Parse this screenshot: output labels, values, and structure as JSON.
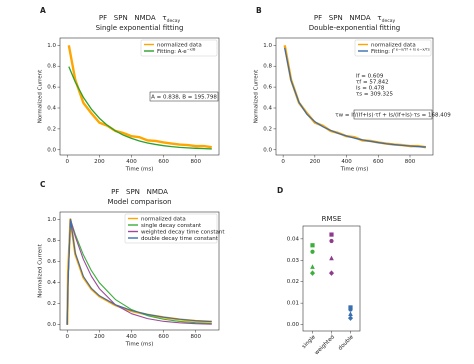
{
  "chart_data": [
    {
      "type": "line",
      "label": "A",
      "title": "PF   SPN   NMDA   τ",
      "title_sub": "decay",
      "subtitle": "Single exponential fitting",
      "xlabel": "Time (ms)",
      "ylabel": "Normalized Current",
      "xlim": [
        -45,
        945
      ],
      "ylim": [
        -0.05,
        1.07
      ],
      "xticks": [
        0,
        200,
        400,
        600,
        800
      ],
      "yticks": [
        {
          "value": 0,
          "label": "0.0"
        },
        0.2,
        0.4,
        0.6,
        0.8,
        {
          "value": 1,
          "label": "1.0"
        }
      ],
      "legend": "upper right",
      "x": [
        10,
        50,
        100,
        150,
        200,
        250,
        300,
        350,
        400,
        450,
        500,
        550,
        600,
        650,
        700,
        750,
        800,
        850,
        900
      ],
      "series": [
        {
          "name": "normalized data",
          "color": "#ffa500",
          "width": 2.4,
          "values": [
            1.0,
            0.67,
            0.45,
            0.35,
            0.26,
            0.23,
            0.18,
            0.16,
            0.13,
            0.12,
            0.09,
            0.085,
            0.07,
            0.06,
            0.05,
            0.045,
            0.035,
            0.035,
            0.025
          ]
        },
        {
          "name": "Fitting: A·e",
          "name_sup": "−x/B",
          "color": "#2ca02c",
          "width": 1.3,
          "values": [
            0.796,
            0.649,
            0.503,
            0.39,
            0.302,
            0.234,
            0.181,
            0.14,
            0.109,
            0.084,
            0.065,
            0.051,
            0.039,
            0.03,
            0.023,
            0.018,
            0.014,
            0.011,
            0.008
          ]
        }
      ],
      "annotation_box": "A = 0.838, B = 195.798"
    },
    {
      "type": "line",
      "label": "B",
      "title": "PF   SPN   NMDA   τ",
      "title_sub": "decay",
      "subtitle": "Double-exponential fitting",
      "xlabel": "Time (ms)",
      "ylabel": "Normalized Current",
      "xlim": [
        -45,
        945
      ],
      "ylim": [
        -0.05,
        1.07
      ],
      "xticks": [
        0,
        200,
        400,
        600,
        800
      ],
      "yticks": [
        {
          "value": 0,
          "label": "0.0"
        },
        0.2,
        0.4,
        0.6,
        0.8,
        {
          "value": 1,
          "label": "1.0"
        }
      ],
      "legend": "upper right",
      "x": [
        10,
        50,
        100,
        150,
        200,
        250,
        300,
        350,
        400,
        450,
        500,
        550,
        600,
        650,
        700,
        750,
        800,
        850,
        900
      ],
      "series": [
        {
          "name": "normalized data",
          "color": "#ffa500",
          "width": 2.4,
          "values": [
            1.0,
            0.67,
            0.45,
            0.35,
            0.26,
            0.23,
            0.18,
            0.16,
            0.13,
            0.12,
            0.09,
            0.085,
            0.07,
            0.06,
            0.05,
            0.045,
            0.035,
            0.035,
            0.025
          ]
        },
        {
          "name": "Fitting: I",
          "name_sup": "f e−x/τf + Is e−x/τs",
          "color": "#3a6fb0",
          "width": 1.3,
          "values": [
            0.975,
            0.664,
            0.454,
            0.34,
            0.269,
            0.221,
            0.185,
            0.156,
            0.132,
            0.111,
            0.095,
            0.081,
            0.069,
            0.058,
            0.05,
            0.042,
            0.036,
            0.031,
            0.026
          ]
        }
      ],
      "annotations": [
        "If = 0.609",
        "τf = 57.842",
        "Is = 0.478",
        "τs = 309.325"
      ],
      "annotation_box": "τw = If/(If+Is)·τf + Is/(If+Is)·τs = 168.409"
    },
    {
      "type": "line",
      "label": "C",
      "title": "PF   SPN   NMDA",
      "subtitle": "Model comparison",
      "xlabel": "Time (ms)",
      "ylabel": "Normalized Current",
      "xlim": [
        -45,
        945
      ],
      "ylim": [
        -0.05,
        1.07
      ],
      "xticks": [
        0,
        200,
        400,
        600,
        800
      ],
      "yticks": [
        {
          "value": 0,
          "label": "0.0"
        },
        0.2,
        0.4,
        0.6,
        0.8,
        {
          "value": 1,
          "label": "1.0"
        }
      ],
      "legend": "upper right",
      "x": [
        0,
        5,
        20,
        50,
        100,
        150,
        200,
        300,
        400,
        500,
        600,
        700,
        800,
        900
      ],
      "series": [
        {
          "name": "normalized data",
          "color": "#ffa500",
          "width": 2.2,
          "values": [
            0,
            0.5,
            1.0,
            0.67,
            0.45,
            0.34,
            0.27,
            0.185,
            0.13,
            0.095,
            0.07,
            0.05,
            0.036,
            0.03
          ]
        },
        {
          "name": "single decay constant",
          "color": "#3cae3c",
          "width": 1.1,
          "values": [
            0,
            0.4,
            1.0,
            0.858,
            0.665,
            0.515,
            0.399,
            0.239,
            0.144,
            0.086,
            0.052,
            0.031,
            0.019,
            0.011
          ]
        },
        {
          "name": "weighted decay time constant",
          "color": "#9b4a9b",
          "width": 1.1,
          "values": [
            0,
            0.4,
            1.0,
            0.837,
            0.622,
            0.462,
            0.343,
            0.19,
            0.105,
            0.058,
            0.032,
            0.018,
            0.01,
            0.005
          ]
        },
        {
          "name": "double decay time constant",
          "color": "#3a6fb0",
          "width": 1.1,
          "values": [
            0,
            0.4,
            1.0,
            0.68,
            0.46,
            0.345,
            0.275,
            0.19,
            0.135,
            0.098,
            0.072,
            0.052,
            0.038,
            0.029
          ]
        }
      ]
    },
    {
      "type": "dot",
      "label": "D",
      "title": "RMSE",
      "categories": [
        "single",
        "weighted",
        "double"
      ],
      "colors": [
        "#3cae3c",
        "#8e3b8e",
        "#3a6fb0"
      ],
      "ylim": [
        -0.003,
        0.046
      ],
      "yticks": [
        {
          "value": 0,
          "label": "0.00"
        },
        0.01,
        0.02,
        0.03,
        0.04
      ],
      "series": [
        {
          "marker": "square",
          "values": [
            0.037,
            0.042,
            0.008
          ]
        },
        {
          "marker": "circle",
          "values": [
            0.034,
            0.039,
            0.007
          ]
        },
        {
          "marker": "triangle",
          "values": [
            0.027,
            0.031,
            0.005
          ]
        },
        {
          "marker": "diamond",
          "values": [
            0.024,
            0.024,
            0.003
          ]
        }
      ]
    }
  ]
}
